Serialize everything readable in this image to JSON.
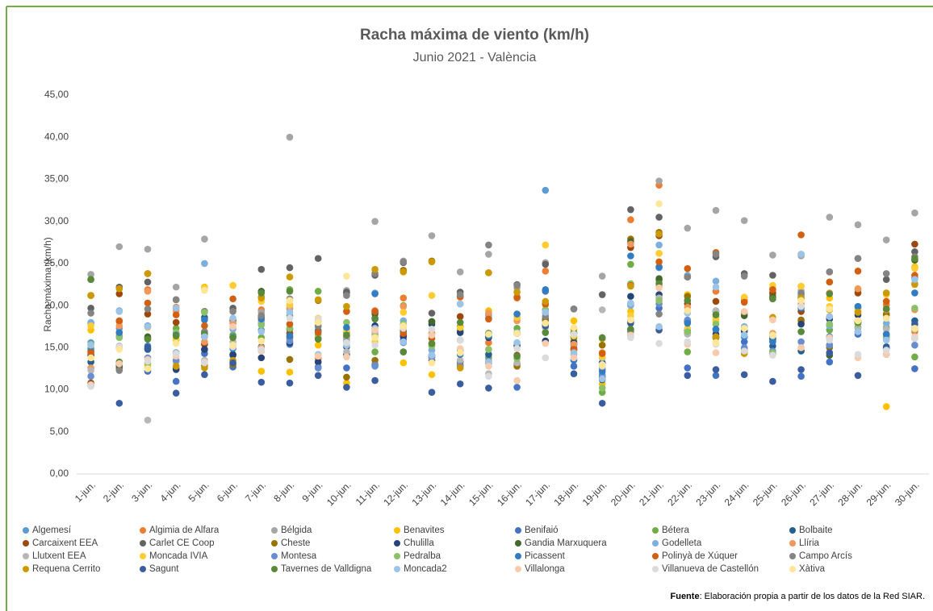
{
  "chart_data": {
    "type": "scatter",
    "title": "Racha máxima de viento (km/h)",
    "subtitle": "Junio 2021 - València",
    "y_label": "Racha máxima (km/h)",
    "source_label": "Fuente",
    "source_text": ": Elaboración propia a partir de los datos de la Red SIAR.",
    "categories": [
      "1-jun.",
      "2-jun.",
      "3-jun.",
      "4-jun.",
      "5-jun.",
      "6-jun.",
      "7-jun.",
      "8-jun.",
      "9-jun.",
      "10-jun.",
      "11-jun.",
      "12-jun.",
      "13-jun.",
      "14-jun.",
      "15-jun.",
      "16-jun.",
      "17-jun.",
      "18-jun.",
      "19-jun.",
      "20-jun.",
      "21-jun.",
      "22-jun.",
      "23-jun.",
      "24-jun.",
      "25-jun.",
      "26-jun.",
      "27-jun.",
      "28-jun.",
      "29-jun.",
      "30-jun."
    ],
    "ylim": [
      0,
      45
    ],
    "yticks": [
      {
        "value": 0,
        "label": "0,00"
      },
      {
        "value": 5,
        "label": "5,00"
      },
      {
        "value": 10,
        "label": "10,00"
      },
      {
        "value": 15,
        "label": "15,00"
      },
      {
        "value": 20,
        "label": "20,00"
      },
      {
        "value": 25,
        "label": "25,00"
      },
      {
        "value": 30,
        "label": "30,00"
      },
      {
        "value": 35,
        "label": "35,00"
      },
      {
        "value": 40,
        "label": "40,00"
      },
      {
        "value": 45,
        "label": "45,00"
      }
    ],
    "grid": false,
    "legend": "bottom",
    "series": [
      {
        "name": "Algemesí",
        "color": "#5b9bd5",
        "values": [
          15.6,
          17.3,
          17.6,
          13.4,
          14.7,
          18.3,
          17.1,
          18.8,
          17.5,
          16.3,
          12.8,
          16.5,
          13.9,
          14.6,
          18.9,
          18.6,
          33.7,
          15.4,
          12.5,
          20.1,
          24.5,
          18.2,
          17.1,
          16.9,
          15.8,
          16.9,
          16.1,
          19.7,
          16.2,
          23.3
        ]
      },
      {
        "name": "Algimia de Alfara",
        "color": "#ed7d31",
        "values": [
          14.2,
          18.1,
          21.9,
          19.8,
          15.5,
          17.9,
          19.5,
          16.1,
          13.7,
          16.1,
          19.4,
          20.9,
          16.7,
          21,
          15.6,
          20.9,
          24.1,
          15.8,
          14.4,
          30.2,
          34.3,
          23.4,
          21.7,
          19.1,
          21.3,
          18.1,
          22.8,
          21.9,
          20.1,
          16.9
        ]
      },
      {
        "name": "Bélgida",
        "color": "#a5a5a5",
        "values": [
          23.7,
          27,
          26.7,
          22.2,
          27.9,
          19.5,
          19.2,
          40,
          18.3,
          21.8,
          30,
          25.3,
          28.3,
          24,
          26.1,
          22.1,
          25.1,
          16.5,
          23.5,
          16.9,
          34.8,
          29.2,
          31.3,
          30.1,
          26,
          25.9,
          30.5,
          29.6,
          27.8,
          31
        ]
      },
      {
        "name": "Benavites",
        "color": "#ffc000",
        "values": [
          17.1,
          16.6,
          12.9,
          16,
          22.2,
          22.4,
          12.2,
          12.1,
          15.3,
          10.8,
          16.6,
          13.2,
          11.8,
          12.7,
          19.4,
          19,
          27.2,
          18.2,
          10.7,
          19.3,
          26.2,
          21.3,
          18.1,
          20.9,
          22,
          22.3,
          20.9,
          19.4,
          8,
          24.6
        ]
      },
      {
        "name": "Benifaió",
        "color": "#4472c4",
        "values": [
          17.9,
          16.3,
          12.2,
          11,
          14.3,
          12.7,
          14.8,
          15.4,
          12.7,
          12.6,
          13,
          15.9,
          14.1,
          13.3,
          13.2,
          10.3,
          21.7,
          12.8,
          11.5,
          18.1,
          19.7,
          12.6,
          11.7,
          15.7,
          14.2,
          11.6,
          13.3,
          16.6,
          16.6,
          12.5
        ]
      },
      {
        "name": "Bétera",
        "color": "#70ad47",
        "values": [
          14.9,
          12.6,
          12.5,
          17.3,
          16.9,
          16.5,
          16.2,
          21.9,
          21.7,
          16.8,
          14.5,
          20,
          15.3,
          17,
          13.8,
          17.3,
          16.8,
          16.2,
          9.7,
          24.9,
          23,
          14.5,
          18.9,
          14.8,
          16.2,
          26.1,
          17.1,
          18,
          17.4,
          13.9
        ]
      },
      {
        "name": "Bolbaite",
        "color": "#255e91",
        "values": [
          13.3,
          12.9,
          14.8,
          14.4,
          18.6,
          14.1,
          15.1,
          17.2,
          12.6,
          15.1,
          18.5,
          16.4,
          13.5,
          12.9,
          14.2,
          13.1,
          17.8,
          14.9,
          11.2,
          17.1,
          20.9,
          18.1,
          16.2,
          17.4,
          15.2,
          14.6,
          15.3,
          17.4,
          15.1,
          18.2
        ]
      },
      {
        "name": "Carcaixent EEA",
        "color": "#9e480e",
        "values": [
          10.8,
          21.4,
          19,
          18,
          15.4,
          18.2,
          18.6,
          16.7,
          16.1,
          21.5,
          19.2,
          17,
          18.1,
          18.7,
          16.4,
          14.1,
          18.4,
          15.3,
          11.4,
          26.9,
          28.3,
          20.2,
          20.5,
          20.7,
          21.5,
          19.3,
          18.6,
          21.5,
          18.9,
          27.3
        ]
      },
      {
        "name": "Carlet CE Coop",
        "color": "#636363",
        "values": [
          19.7,
          22.2,
          22.8,
          20.7,
          19.3,
          19.7,
          24.3,
          24.5,
          25.6,
          21.6,
          23.6,
          25.1,
          19.1,
          21.6,
          18.5,
          22.5,
          24.9,
          19.6,
          21.3,
          31.4,
          30.5,
          23.4,
          25.8,
          23.8,
          23.6,
          21.2,
          24,
          25.6,
          23.1,
          26.4
        ]
      },
      {
        "name": "Cheste",
        "color": "#997300",
        "values": [
          21.2,
          12.5,
          23.8,
          12.5,
          12.9,
          13,
          21,
          13.6,
          20.6,
          11.5,
          13.5,
          24.2,
          25.3,
          12.9,
          23.9,
          12.8,
          18.2,
          14.7,
          15.3,
          27.9,
          28.7,
          21.1,
          16.2,
          14.8,
          21,
          18.3,
          15,
          18,
          19,
          16.1
        ]
      },
      {
        "name": "Chulilla",
        "color": "#264478",
        "values": [
          14.1,
          13.1,
          16.1,
          12.4,
          14.8,
          14.2,
          13.8,
          15.6,
          13.3,
          14.2,
          17.6,
          16.3,
          17.8,
          16.8,
          16.2,
          16.7,
          15.8,
          15.6,
          13.2,
          21.1,
          21.3,
          17,
          16.6,
          17,
          16.1,
          17.8,
          18.4,
          18.9,
          16.3,
          17.3
        ]
      },
      {
        "name": "Gandia Marxuquera",
        "color": "#43682b",
        "values": [
          23.1,
          12.8,
          16.3,
          16.7,
          16.3,
          16.3,
          21.7,
          16.3,
          17,
          16.4,
          19,
          17.7,
          18.1,
          17.5,
          16.7,
          15.3,
          17.4,
          16.3,
          16.1,
          27.6,
          23.2,
          16.8,
          19.3,
          18.8,
          21,
          20.9,
          14.1,
          18.1,
          19.6,
          25.4
        ]
      },
      {
        "name": "Godelleta",
        "color": "#7cafdd",
        "values": [
          18,
          19.4,
          17.5,
          14.4,
          25,
          17.2,
          17.9,
          19.6,
          18.3,
          16.2,
          21.5,
          18.2,
          14.7,
          20.2,
          18.8,
          16.8,
          19.1,
          15.4,
          13.8,
          20,
          27.2,
          23.6,
          22.9,
          17.5,
          16.4,
          21.3,
          17.6,
          19.9,
          17.9,
          22.6
        ]
      },
      {
        "name": "Llíria",
        "color": "#f1975a",
        "values": [
          12.6,
          17.6,
          21.7,
          19.4,
          15.7,
          17.9,
          15,
          19.7,
          18.2,
          16.4,
          16.6,
          19.9,
          13.8,
          15.9,
          19.1,
          18.2,
          20.1,
          15.4,
          14.3,
          27.3,
          22.3,
          19.8,
          18.6,
          20.7,
          16.7,
          20.2,
          21.5,
          22,
          19.5,
          19.5
        ]
      },
      {
        "name": "Llutxent EEA",
        "color": "#b7b7b7",
        "values": [
          12.3,
          15.2,
          6.4,
          13.3,
          13.5,
          15.7,
          18.1,
          20,
          18.2,
          14.5,
          16.8,
          17.5,
          14,
          13.5,
          11.9,
          13.2,
          17.4,
          14.2,
          19.5,
          16.4,
          20.9,
          16.6,
          19.4,
          14.8,
          16.4,
          21.8,
          16.3,
          17.3,
          17.2,
          17.2
        ]
      },
      {
        "name": "Moncada IVIA",
        "color": "#ffcd33",
        "values": [
          17.6,
          16.8,
          17.4,
          15.9,
          22,
          22.4,
          20.5,
          20.1,
          18.5,
          17.1,
          15.7,
          19.2,
          21.2,
          17.4,
          14.8,
          18.6,
          27.2,
          16.4,
          13.9,
          18.8,
          26.2,
          17.3,
          18.4,
          21,
          22.4,
          22.3,
          19.9,
          19.3,
          21.3,
          24.4
        ]
      },
      {
        "name": "Montesa",
        "color": "#698ed0",
        "values": [
          11.6,
          15,
          13.8,
          13.5,
          16.7,
          16.3,
          14.6,
          15.8,
          12.6,
          15.7,
          12.9,
          15.6,
          13.9,
          12.8,
          13.4,
          15.3,
          19.5,
          13.6,
          11.8,
          16.9,
          20.2,
          18.3,
          16.3,
          15,
          14.6,
          15.7,
          15.3,
          16.9,
          14.2,
          15.3
        ]
      },
      {
        "name": "Pedralba",
        "color": "#8cc168",
        "values": [
          15.4,
          16.2,
          13.2,
          16.8,
          19.2,
          15.3,
          17.7,
          17.3,
          16.5,
          18,
          16.3,
          17.8,
          15.2,
          15.9,
          14.8,
          13.7,
          19.5,
          16.8,
          10.2,
          22.6,
          20.6,
          16.9,
          17.8,
          16.3,
          14.4,
          19.8,
          17.8,
          17.8,
          16.3,
          19.7
        ]
      },
      {
        "name": "Picassent",
        "color": "#327dc2",
        "values": [
          14.6,
          16.8,
          15.2,
          16.5,
          18.3,
          14.9,
          18.4,
          16.4,
          16.9,
          17.4,
          21.4,
          16.8,
          14.1,
          14.2,
          16.4,
          19,
          21.9,
          13.5,
          12.2,
          25.9,
          24.6,
          17.9,
          17.2,
          16.3,
          15.7,
          19.7,
          16.3,
          19.9,
          16.6,
          21.5
        ]
      },
      {
        "name": "Polinyà de Xúquer",
        "color": "#d26012",
        "values": [
          14.4,
          18.2,
          20.3,
          18.9,
          17.6,
          20.8,
          18.8,
          17.8,
          16.8,
          19.3,
          19.3,
          16.7,
          16.1,
          21.1,
          18.4,
          21,
          20.2,
          14.8,
          14.3,
          22.4,
          25.2,
          24.4,
          26.3,
          20.4,
          21.9,
          28.4,
          22.8,
          24.1,
          20.5,
          23.6
        ]
      },
      {
        "name": "Campo Arcís",
        "color": "#848484",
        "values": [
          19.1,
          12.3,
          19.6,
          20.7,
          16.9,
          19.3,
          18.8,
          20.8,
          17.6,
          21.2,
          23.8,
          25.2,
          15.5,
          21.3,
          27.2,
          22.4,
          18.7,
          19.6,
          16.1,
          18.3,
          19,
          23.4,
          26.1,
          23.5,
          20.8,
          21.5,
          24,
          25.6,
          23.8,
          25.8
        ]
      },
      {
        "name": "Requena Cerrito",
        "color": "#cc9a00",
        "values": [
          21.2,
          22,
          23.8,
          12.8,
          12.6,
          13.5,
          20.9,
          23.4,
          20.7,
          19.9,
          24.3,
          24,
          25.2,
          12.6,
          23.9,
          21.6,
          20.5,
          17.2,
          16.1,
          22.3,
          28.5,
          20.6,
          16.3,
          14.3,
          18.6,
          20.9,
          19.5,
          19.2,
          21.5,
          22.5
        ]
      },
      {
        "name": "Sagunt",
        "color": "#3a5da0",
        "values": [
          10.5,
          8.4,
          15,
          9.6,
          11.8,
          13.2,
          10.9,
          10.8,
          11.7,
          10.3,
          11.1,
          14.5,
          9.7,
          10.7,
          10.2,
          15.2,
          17.6,
          11.9,
          8.4,
          17.9,
          17.1,
          11.7,
          12.4,
          11.8,
          11,
          12.4,
          14.4,
          11.7,
          14.9,
          17.8
        ]
      },
      {
        "name": "Tavernes de Valldigna",
        "color": "#5a8a39",
        "values": [
          23.1,
          13.3,
          16,
          16.4,
          16.6,
          16.2,
          21.5,
          21.7,
          16,
          16.5,
          18.4,
          14.5,
          15.5,
          18,
          16.7,
          14,
          16.8,
          16.7,
          16.2,
          17.2,
          22.6,
          20.6,
          18.9,
          14.6,
          20.8,
          16.9,
          21.4,
          18,
          19.6,
          25.6
        ]
      },
      {
        "name": "Moncada2",
        "color": "#9dc3e6",
        "values": [
          15.3,
          19.3,
          17.5,
          19.7,
          16.3,
          18.5,
          16.9,
          19.2,
          14.2,
          15.3,
          17.3,
          15.7,
          14.1,
          20.2,
          13.3,
          15.6,
          19.2,
          14.4,
          11.3,
          20.3,
          17.5,
          19.1,
          22.2,
          16.5,
          16.4,
          26.1,
          18.7,
          16.9,
          15.9,
          23.1
        ]
      },
      {
        "name": "Villalonga",
        "color": "#f8cbad",
        "values": [
          10.6,
          13.1,
          13.6,
          14,
          13.3,
          17.5,
          14.6,
          20.6,
          14,
          13.9,
          17.1,
          17.4,
          16.5,
          14.9,
          12.8,
          11.1,
          15.5,
          13.8,
          12.8,
          16.5,
          22.1,
          15.4,
          14.4,
          19.3,
          18.3,
          15,
          16.2,
          13.8,
          14.2,
          16.3
        ]
      },
      {
        "name": "Villanueva de Castellón",
        "color": "#dbdbdb",
        "values": [
          10.4,
          15.1,
          13.4,
          14.3,
          13.2,
          15.1,
          14.8,
          18.5,
          18.4,
          15.6,
          15.3,
          17.3,
          17.2,
          15.9,
          11.6,
          14.9,
          13.8,
          16.6,
          13,
          16.2,
          15.5,
          15.7,
          15.4,
          14.6,
          14.1,
          19.9,
          15.9,
          14.2,
          14.7,
          16.1
        ]
      },
      {
        "name": "Xàtiva",
        "color": "#ffe699",
        "values": [
          13.8,
          14.8,
          12.5,
          15.5,
          21.8,
          15.3,
          15.8,
          20.6,
          18,
          23.5,
          16.2,
          17.6,
          13.2,
          14.4,
          16.6,
          16.7,
          17.9,
          17.4,
          12.9,
          18.3,
          32.1,
          19.4,
          15.6,
          17.3,
          16.5,
          20.6,
          19.6,
          18.2,
          18.5,
          17.3
        ]
      }
    ]
  }
}
